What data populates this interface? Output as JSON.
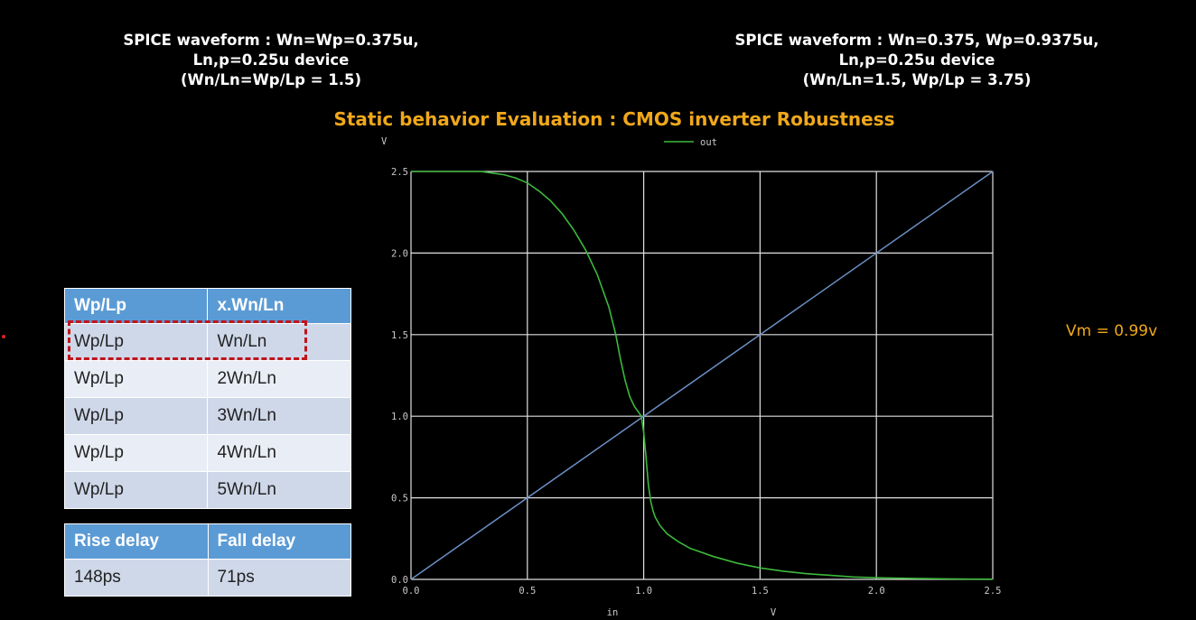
{
  "header_left": {
    "line1": "SPICE waveform : Wn=Wp=0.375u,",
    "line2": "Ln,p=0.25u device",
    "line3": "(Wn/Ln=Wp/Lp = 1.5)"
  },
  "header_right": {
    "line1": "SPICE waveform : Wn=0.375, Wp=0.9375u,",
    "line2": "Ln,p=0.25u device",
    "line3": "(Wn/Ln=1.5, Wp/Lp = 3.75)"
  },
  "main_title": "Static behavior Evaluation : CMOS inverter Robustness",
  "vm_label": "Vm = 0.99v",
  "ratio_table": {
    "headers": [
      "Wp/Lp",
      "x.Wn/Ln"
    ],
    "rows": [
      [
        "Wp/Lp",
        "Wn/Ln"
      ],
      [
        "Wp/Lp",
        "2Wn/Ln"
      ],
      [
        "Wp/Lp",
        "3Wn/Ln"
      ],
      [
        "Wp/Lp",
        "4Wn/Ln"
      ],
      [
        "Wp/Lp",
        "5Wn/Ln"
      ]
    ],
    "highlighted_row": 0
  },
  "delay_table": {
    "headers": [
      "Rise delay",
      "Fall delay"
    ],
    "rows": [
      [
        "148ps",
        "71ps"
      ]
    ]
  },
  "colors": {
    "accent": "#f0a81a",
    "table_header": "#5b9bd5",
    "highlight": "#c0141c",
    "curve_out": "#3cb83c",
    "curve_ref": "#6a8fc4",
    "grid": "#e0e0e0"
  },
  "chart_data": {
    "type": "line",
    "ylabel": "V",
    "xlabel_left": "in",
    "xlabel_right": "V",
    "xlim": [
      0,
      2.5
    ],
    "ylim": [
      0,
      2.5
    ],
    "xticks": [
      "0.0",
      "0.5",
      "1.0",
      "1.5",
      "2.0",
      "2.5"
    ],
    "yticks": [
      "0.0",
      "0.5",
      "1.0",
      "1.5",
      "2.0",
      "2.5"
    ],
    "grid": true,
    "legend_position": "top-center",
    "series": [
      {
        "name": "out",
        "x": [
          0,
          0.3,
          0.35,
          0.4,
          0.45,
          0.5,
          0.55,
          0.6,
          0.65,
          0.7,
          0.75,
          0.8,
          0.85,
          0.88,
          0.9,
          0.92,
          0.94,
          0.96,
          0.98,
          0.99,
          1.0,
          1.01,
          1.02,
          1.03,
          1.04,
          1.05,
          1.07,
          1.1,
          1.15,
          1.2,
          1.3,
          1.4,
          1.5,
          1.6,
          1.7,
          1.8,
          1.9,
          2.0,
          2.1,
          2.2,
          2.3,
          2.4,
          2.5
        ],
        "y": [
          2.5,
          2.5,
          2.49,
          2.48,
          2.46,
          2.43,
          2.38,
          2.32,
          2.24,
          2.14,
          2.02,
          1.87,
          1.67,
          1.5,
          1.35,
          1.22,
          1.12,
          1.06,
          1.02,
          1.0,
          0.9,
          0.75,
          0.58,
          0.48,
          0.42,
          0.38,
          0.33,
          0.28,
          0.23,
          0.19,
          0.14,
          0.1,
          0.07,
          0.05,
          0.035,
          0.025,
          0.015,
          0.01,
          0.007,
          0.005,
          0.003,
          0.002,
          0.001
        ]
      },
      {
        "name": "",
        "x": [
          0,
          2.5
        ],
        "y": [
          0,
          2.5
        ]
      }
    ]
  }
}
